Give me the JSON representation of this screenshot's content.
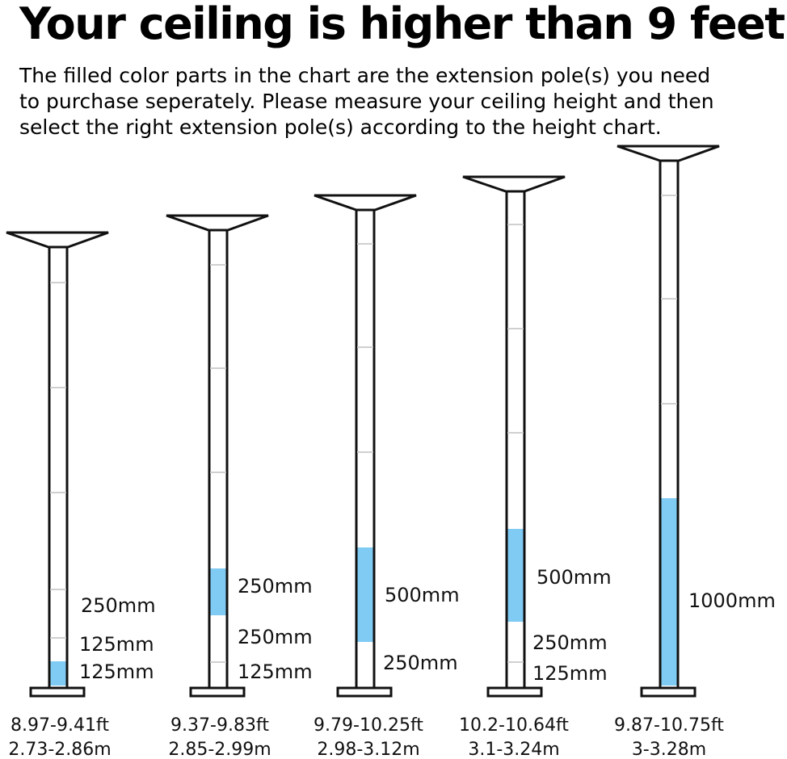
{
  "header": {
    "title": "Your ceiling is higher than 9 feet?",
    "subtitle": "The filled color parts in the chart are the extension pole(s) you need to purchase seperately.  Please measure your ceiling height and then select the right extension pole(s) according to the height chart."
  },
  "colors": {
    "fill": "#7fcbf3",
    "outline": "#111111",
    "divider": "#d0d0d0"
  },
  "poles": [
    {
      "range_ft": "8.97-9.41ft",
      "range_m": "2.73-2.86m",
      "segments": [
        {
          "label": "250mm",
          "filled": false
        },
        {
          "label": "125mm",
          "filled": false
        },
        {
          "label": "125mm",
          "filled": true
        }
      ]
    },
    {
      "range_ft": "9.37-9.83ft",
      "range_m": "2.85-2.99m",
      "segments": [
        {
          "label": "250mm",
          "filled": true
        },
        {
          "label": "250mm",
          "filled": false
        },
        {
          "label": "125mm",
          "filled": false
        }
      ]
    },
    {
      "range_ft": "9.79-10.25ft",
      "range_m": "2.98-3.12m",
      "segments": [
        {
          "label": "500mm",
          "filled": true
        },
        {
          "label": "250mm",
          "filled": false
        }
      ]
    },
    {
      "range_ft": "10.2-10.64ft",
      "range_m": "3.1-3.24m",
      "segments": [
        {
          "label": "500mm",
          "filled": true
        },
        {
          "label": "250mm",
          "filled": false
        },
        {
          "label": "125mm",
          "filled": false
        }
      ]
    },
    {
      "range_ft": "9.87-10.75ft",
      "range_m": "3-3.28m",
      "segments": [
        {
          "label": "1000mm",
          "filled": true
        }
      ]
    }
  ]
}
